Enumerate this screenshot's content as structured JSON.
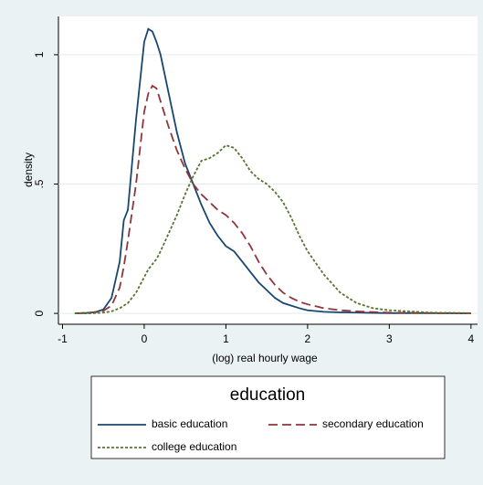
{
  "chart_data": {
    "type": "line",
    "x_label": "(log) real hourly wage",
    "y_label": "density",
    "legend_title": "education",
    "x": [
      -0.85,
      -0.7,
      -0.6,
      -0.5,
      -0.4,
      -0.3,
      -0.25,
      -0.2,
      -0.1,
      0,
      0.05,
      0.1,
      0.15,
      0.2,
      0.3,
      0.4,
      0.5,
      0.6,
      0.7,
      0.8,
      0.9,
      1.0,
      1.1,
      1.2,
      1.3,
      1.4,
      1.5,
      1.6,
      1.7,
      1.8,
      1.9,
      2.0,
      2.2,
      2.4,
      2.6,
      2.8,
      3.0,
      3.5,
      4.0
    ],
    "series": [
      {
        "name": "basic education",
        "color": "#1a476f",
        "line_style": "solid",
        "values": [
          0,
          0.002,
          0.005,
          0.015,
          0.06,
          0.2,
          0.36,
          0.4,
          0.75,
          1.05,
          1.1,
          1.09,
          1.05,
          1.0,
          0.85,
          0.7,
          0.58,
          0.5,
          0.42,
          0.35,
          0.3,
          0.26,
          0.24,
          0.2,
          0.16,
          0.12,
          0.09,
          0.06,
          0.04,
          0.03,
          0.02,
          0.012,
          0.006,
          0.004,
          0.003,
          0.002,
          0.001,
          0.001,
          0
        ]
      },
      {
        "name": "secondary education",
        "color": "#90353b",
        "line_style": "dash",
        "values": [
          0,
          0.002,
          0.004,
          0.01,
          0.03,
          0.1,
          0.18,
          0.28,
          0.5,
          0.78,
          0.85,
          0.88,
          0.87,
          0.82,
          0.72,
          0.63,
          0.56,
          0.5,
          0.46,
          0.43,
          0.4,
          0.38,
          0.35,
          0.31,
          0.26,
          0.2,
          0.15,
          0.11,
          0.08,
          0.06,
          0.045,
          0.035,
          0.02,
          0.012,
          0.008,
          0.005,
          0.003,
          0.001,
          0
        ]
      },
      {
        "name": "college education",
        "color": "#55752f",
        "line_style": "dot",
        "values": [
          0,
          0,
          0.001,
          0.003,
          0.008,
          0.02,
          0.03,
          0.04,
          0.08,
          0.14,
          0.17,
          0.19,
          0.21,
          0.24,
          0.31,
          0.38,
          0.46,
          0.53,
          0.59,
          0.6,
          0.62,
          0.65,
          0.64,
          0.6,
          0.55,
          0.52,
          0.5,
          0.47,
          0.43,
          0.37,
          0.3,
          0.24,
          0.15,
          0.08,
          0.04,
          0.02,
          0.012,
          0.003,
          0.001
        ]
      }
    ],
    "xlim": [
      -1.05,
      4.08
    ],
    "ylim": [
      -0.042,
      1.148
    ],
    "xticks": [
      -1,
      0,
      1,
      2,
      3,
      4
    ],
    "yticks": [
      0,
      {
        "value": 0.5,
        "label": ".5"
      },
      1
    ],
    "grid": true
  }
}
